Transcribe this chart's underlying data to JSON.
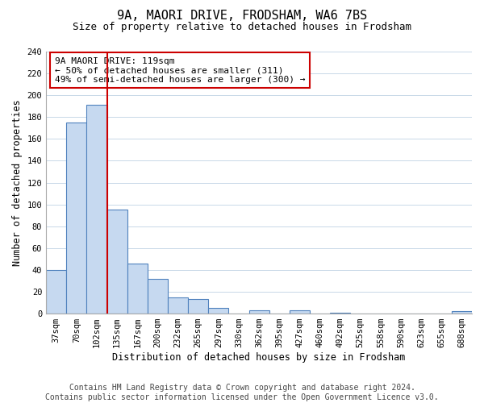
{
  "title": "9A, MAORI DRIVE, FRODSHAM, WA6 7BS",
  "subtitle": "Size of property relative to detached houses in Frodsham",
  "xlabel": "Distribution of detached houses by size in Frodsham",
  "ylabel": "Number of detached properties",
  "bar_labels": [
    "37sqm",
    "70sqm",
    "102sqm",
    "135sqm",
    "167sqm",
    "200sqm",
    "232sqm",
    "265sqm",
    "297sqm",
    "330sqm",
    "362sqm",
    "395sqm",
    "427sqm",
    "460sqm",
    "492sqm",
    "525sqm",
    "558sqm",
    "590sqm",
    "623sqm",
    "655sqm",
    "688sqm"
  ],
  "bar_values": [
    40,
    175,
    191,
    95,
    46,
    32,
    15,
    13,
    5,
    0,
    3,
    0,
    3,
    0,
    1,
    0,
    0,
    0,
    0,
    0,
    2
  ],
  "bar_color": "#c6d9f0",
  "bar_edge_color": "#4f81bd",
  "vline_x_index": 3,
  "vline_color": "#cc0000",
  "annotation_line1": "9A MAORI DRIVE: 119sqm",
  "annotation_line2": "← 50% of detached houses are smaller (311)",
  "annotation_line3": "49% of semi-detached houses are larger (300) →",
  "annotation_box_edgecolor": "#cc0000",
  "annotation_box_facecolor": "#ffffff",
  "ylim": [
    0,
    240
  ],
  "yticks": [
    0,
    20,
    40,
    60,
    80,
    100,
    120,
    140,
    160,
    180,
    200,
    220,
    240
  ],
  "footer_line1": "Contains HM Land Registry data © Crown copyright and database right 2024.",
  "footer_line2": "Contains public sector information licensed under the Open Government Licence v3.0.",
  "title_fontsize": 11,
  "subtitle_fontsize": 9,
  "axis_label_fontsize": 8.5,
  "tick_fontsize": 7.5,
  "annotation_fontsize": 8,
  "footer_fontsize": 7,
  "background_color": "#ffffff",
  "grid_color": "#c8d8e8",
  "figwidth": 6.0,
  "figheight": 5.0,
  "dpi": 100
}
